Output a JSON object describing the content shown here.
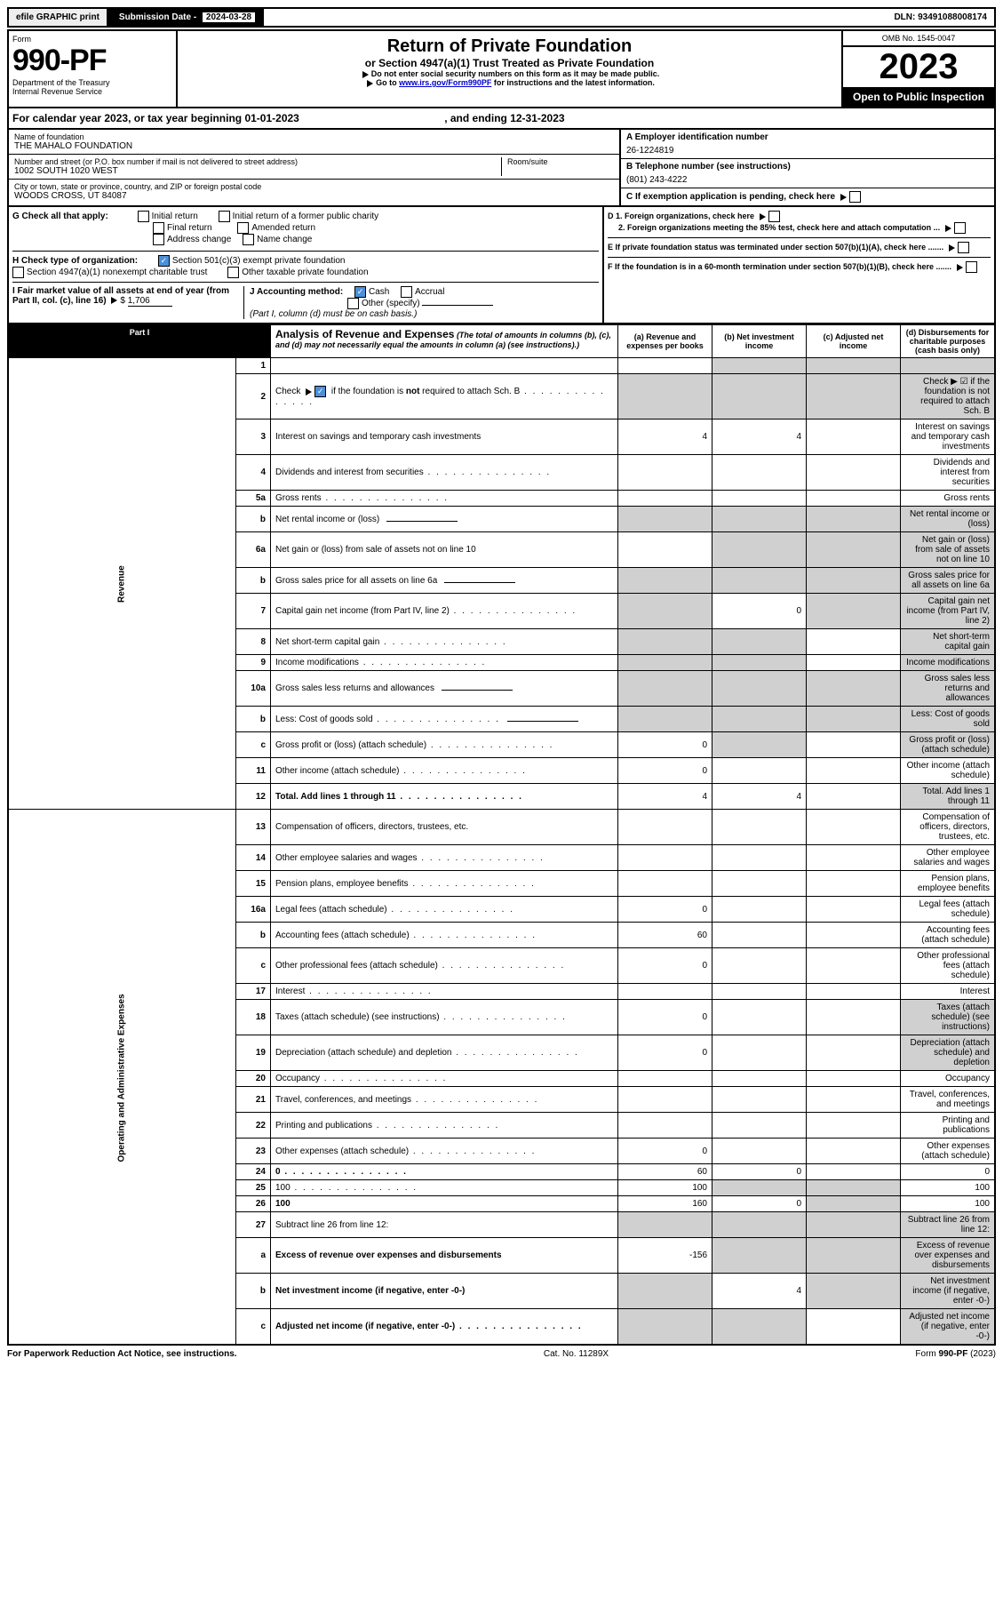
{
  "top": {
    "efile": "efile GRAPHIC print",
    "sub_label": "Submission Date - ",
    "sub_date": "2024-03-28",
    "dln_label": "DLN: ",
    "dln": "93491088008174"
  },
  "header": {
    "form_label": "Form",
    "form_num": "990-PF",
    "dept1": "Department of the Treasury",
    "dept2": "Internal Revenue Service",
    "title": "Return of Private Foundation",
    "subtitle": "or Section 4947(a)(1) Trust Treated as Private Foundation",
    "note1": "Do not enter social security numbers on this form as it may be made public.",
    "note2_pre": "Go to ",
    "note2_link": "www.irs.gov/Form990PF",
    "note2_post": " for instructions and the latest information.",
    "omb": "OMB No. 1545-0047",
    "year": "2023",
    "open": "Open to Public Inspection"
  },
  "cal": {
    "pre": "For calendar year 2023, or tax year beginning ",
    "begin": "01-01-2023",
    "mid": ", and ending ",
    "end": "12-31-2023"
  },
  "entity": {
    "name_label": "Name of foundation",
    "name": "THE MAHALO FOUNDATION",
    "addr_label": "Number and street (or P.O. box number if mail is not delivered to street address)",
    "addr": "1002 SOUTH 1020 WEST",
    "room_label": "Room/suite",
    "city_label": "City or town, state or province, country, and ZIP or foreign postal code",
    "city": "WOODS CROSS, UT  84087",
    "ein_label": "A Employer identification number",
    "ein": "26-1224819",
    "tel_label": "B Telephone number (see instructions)",
    "tel": "(801) 243-4222",
    "c_label": "C If exemption application is pending, check here"
  },
  "g": {
    "label": "G Check all that apply:",
    "items": [
      "Initial return",
      "Initial return of a former public charity",
      "Final return",
      "Amended return",
      "Address change",
      "Name change"
    ]
  },
  "h": {
    "label": "H Check type of organization:",
    "opt1": "Section 501(c)(3) exempt private foundation",
    "opt2": "Section 4947(a)(1) nonexempt charitable trust",
    "opt3": "Other taxable private foundation"
  },
  "i": {
    "label": "I Fair market value of all assets at end of year (from Part II, col. (c), line 16)",
    "val": "1,706"
  },
  "j": {
    "label": "J Accounting method:",
    "cash": "Cash",
    "accrual": "Accrual",
    "other": "Other (specify)",
    "note": "(Part I, column (d) must be on cash basis.)"
  },
  "d": {
    "d1": "D 1. Foreign organizations, check here",
    "d2": "2. Foreign organizations meeting the 85% test, check here and attach computation ...",
    "e": "E  If private foundation status was terminated under section 507(b)(1)(A), check here .......",
    "f": "F  If the foundation is in a 60-month termination under section 507(b)(1)(B), check here ......."
  },
  "part1": {
    "tag": "Part I",
    "title": "Analysis of Revenue and Expenses",
    "title_note": "(The total of amounts in columns (b), (c), and (d) may not necessarily equal the amounts in column (a) (see instructions).)",
    "cols": {
      "a": "(a) Revenue and expenses per books",
      "b": "(b) Net investment income",
      "c": "(c) Adjusted net income",
      "d": "(d) Disbursements for charitable purposes (cash basis only)"
    }
  },
  "sections": {
    "rev": "Revenue",
    "exp": "Operating and Administrative Expenses"
  },
  "rows": [
    {
      "n": "1",
      "d": "",
      "a": "",
      "b": "",
      "c": "",
      "shade": [
        "b",
        "c",
        "d"
      ]
    },
    {
      "n": "2",
      "d": "Check ▶ ☑ if the foundation is not required to attach Sch. B",
      "dots": true,
      "shade": [
        "a",
        "b",
        "c",
        "d"
      ]
    },
    {
      "n": "3",
      "d": "Interest on savings and temporary cash investments",
      "a": "4",
      "b": "4"
    },
    {
      "n": "4",
      "d": "Dividends and interest from securities",
      "dots": true
    },
    {
      "n": "5a",
      "d": "Gross rents",
      "dots": true
    },
    {
      "n": "b",
      "d": "Net rental income or (loss)",
      "inline": true,
      "shade": [
        "a",
        "b",
        "c",
        "d"
      ]
    },
    {
      "n": "6a",
      "d": "Net gain or (loss) from sale of assets not on line 10",
      "shade": [
        "b",
        "c",
        "d"
      ]
    },
    {
      "n": "b",
      "d": "Gross sales price for all assets on line 6a",
      "inline": true,
      "shade": [
        "a",
        "b",
        "c",
        "d"
      ]
    },
    {
      "n": "7",
      "d": "Capital gain net income (from Part IV, line 2)",
      "dots": true,
      "b": "0",
      "shade": [
        "a",
        "c",
        "d"
      ]
    },
    {
      "n": "8",
      "d": "Net short-term capital gain",
      "dots": true,
      "shade": [
        "a",
        "b",
        "d"
      ]
    },
    {
      "n": "9",
      "d": "Income modifications",
      "dots": true,
      "shade": [
        "a",
        "b",
        "d"
      ]
    },
    {
      "n": "10a",
      "d": "Gross sales less returns and allowances",
      "inline": true,
      "shade": [
        "a",
        "b",
        "c",
        "d"
      ]
    },
    {
      "n": "b",
      "d": "Less: Cost of goods sold",
      "dots": true,
      "inline": true,
      "shade": [
        "a",
        "b",
        "c",
        "d"
      ]
    },
    {
      "n": "c",
      "d": "Gross profit or (loss) (attach schedule)",
      "dots": true,
      "a": "0",
      "shade": [
        "b",
        "d"
      ]
    },
    {
      "n": "11",
      "d": "Other income (attach schedule)",
      "dots": true,
      "a": "0"
    },
    {
      "n": "12",
      "d": "Total. Add lines 1 through 11",
      "dots": true,
      "bold": true,
      "a": "4",
      "b": "4",
      "shade": [
        "d"
      ]
    },
    {
      "n": "13",
      "d": "Compensation of officers, directors, trustees, etc."
    },
    {
      "n": "14",
      "d": "Other employee salaries and wages",
      "dots": true
    },
    {
      "n": "15",
      "d": "Pension plans, employee benefits",
      "dots": true
    },
    {
      "n": "16a",
      "d": "Legal fees (attach schedule)",
      "dots": true,
      "a": "0"
    },
    {
      "n": "b",
      "d": "Accounting fees (attach schedule)",
      "dots": true,
      "a": "60"
    },
    {
      "n": "c",
      "d": "Other professional fees (attach schedule)",
      "dots": true,
      "a": "0"
    },
    {
      "n": "17",
      "d": "Interest",
      "dots": true
    },
    {
      "n": "18",
      "d": "Taxes (attach schedule) (see instructions)",
      "dots": true,
      "a": "0",
      "shade": [
        "d"
      ]
    },
    {
      "n": "19",
      "d": "Depreciation (attach schedule) and depletion",
      "dots": true,
      "a": "0",
      "shade": [
        "d"
      ]
    },
    {
      "n": "20",
      "d": "Occupancy",
      "dots": true
    },
    {
      "n": "21",
      "d": "Travel, conferences, and meetings",
      "dots": true
    },
    {
      "n": "22",
      "d": "Printing and publications",
      "dots": true
    },
    {
      "n": "23",
      "d": "Other expenses (attach schedule)",
      "dots": true,
      "a": "0"
    },
    {
      "n": "24",
      "d": "0",
      "dots": true,
      "bold": true,
      "a": "60",
      "b": "0"
    },
    {
      "n": "25",
      "d": "100",
      "dots": true,
      "a": "100",
      "shade": [
        "b",
        "c"
      ]
    },
    {
      "n": "26",
      "d": "100",
      "bold": true,
      "a": "160",
      "b": "0",
      "shade": [
        "c"
      ]
    },
    {
      "n": "27",
      "d": "Subtract line 26 from line 12:",
      "shade": [
        "a",
        "b",
        "c",
        "d"
      ]
    },
    {
      "n": "a",
      "d": "Excess of revenue over expenses and disbursements",
      "bold": true,
      "a": "-156",
      "shade": [
        "b",
        "c",
        "d"
      ]
    },
    {
      "n": "b",
      "d": "Net investment income (if negative, enter -0-)",
      "bold": true,
      "b": "4",
      "shade": [
        "a",
        "c",
        "d"
      ]
    },
    {
      "n": "c",
      "d": "Adjusted net income (if negative, enter -0-)",
      "dots": true,
      "bold": true,
      "shade": [
        "a",
        "b",
        "d"
      ]
    }
  ],
  "footer": {
    "left": "For Paperwork Reduction Act Notice, see instructions.",
    "mid": "Cat. No. 11289X",
    "right": "Form 990-PF (2023)"
  },
  "colors": {
    "link": "#0000cc",
    "check": "#4a90d9",
    "shade": "#d0d0d0"
  }
}
